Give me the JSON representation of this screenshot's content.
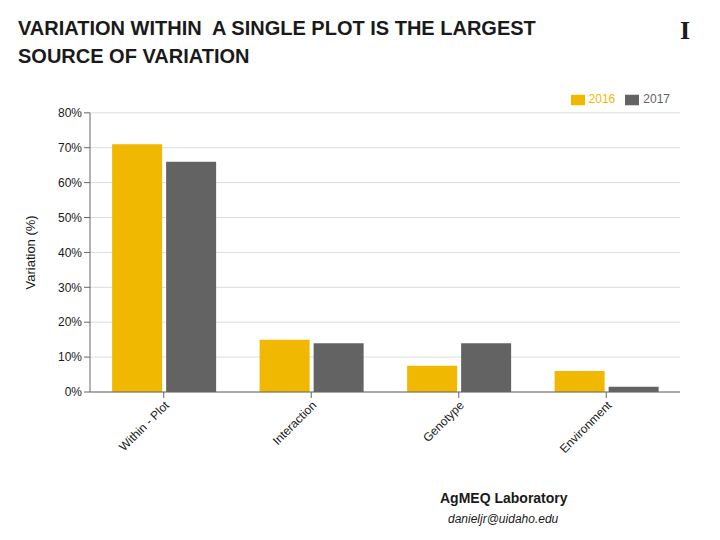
{
  "chart_data": {
    "type": "bar",
    "title": "VARIATION WITHIN  A SINGLE PLOT IS THE LARGEST SOURCE OF VARIATION",
    "categories": [
      "Within - Plot",
      "Interaction",
      "Genotype",
      "Environment"
    ],
    "series": [
      {
        "name": "2016",
        "color": "#F0B800",
        "values": [
          71,
          15,
          7.5,
          6
        ]
      },
      {
        "name": "2017",
        "color": "#636363",
        "values": [
          66,
          14,
          14,
          1.5
        ]
      }
    ],
    "ylabel": "Variation (%)",
    "ylim": [
      0,
      80
    ],
    "yticks": [
      {
        "value": 0,
        "label": "0%"
      },
      {
        "value": 10,
        "label": "10%"
      },
      {
        "value": 20,
        "label": "20%"
      },
      {
        "value": 30,
        "label": "30%"
      },
      {
        "value": 40,
        "label": "40%"
      },
      {
        "value": 50,
        "label": "50%"
      },
      {
        "value": 60,
        "label": "60%"
      },
      {
        "value": 70,
        "label": "70%"
      },
      {
        "value": 80,
        "label": "80%"
      }
    ],
    "grid": true,
    "legend": "upper right",
    "annotations": [
      "I",
      "AgMEQ Laboratory",
      "danieljr@uidaho.edu"
    ]
  }
}
